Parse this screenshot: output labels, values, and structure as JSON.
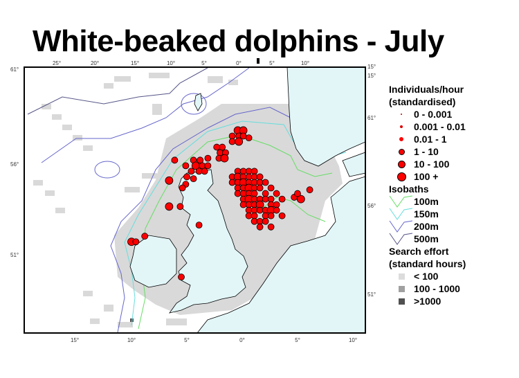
{
  "title": "White-beaked dolphins - July",
  "axes": {
    "top_lon_labels": [
      "25°",
      "20°",
      "15°",
      "10°",
      "5°",
      "0°",
      "5°",
      "10°"
    ],
    "bottom_lon_labels": [
      "15°",
      "10°",
      "5°",
      "0°",
      "5°",
      "10°"
    ],
    "left_lat_labels": [
      "61°",
      "56°",
      "51°"
    ],
    "right_labels": [
      "15°",
      "15°",
      "61°",
      "56°",
      "51°"
    ]
  },
  "legend": {
    "individuals_title": "Individuals/hour",
    "individuals_subtitle": "(standardised)",
    "individual_classes": [
      "0 - 0.001",
      "0.001 - 0.01",
      "0.01 - 1",
      "1 - 10",
      "10 - 100",
      "100 +"
    ],
    "isobaths_title": "Isobaths",
    "isobaths": [
      {
        "label": "100m",
        "color": "#66dd66"
      },
      {
        "label": "150m",
        "color": "#66dddd"
      },
      {
        "label": "200m",
        "color": "#6666cc"
      },
      {
        "label": "500m",
        "color": "#555588"
      }
    ],
    "effort_title": "Search effort",
    "effort_subtitle": "(standard hours)",
    "effort_classes": [
      {
        "label": "< 100",
        "color": "#dcdcdc"
      },
      {
        "label": "100 - 1000",
        "color": "#a0a0a0"
      },
      {
        "label": ">1000",
        "color": "#505050"
      }
    ]
  },
  "colors": {
    "sighting": "#ff0000",
    "land": "#e2f6f8",
    "effort_low": "#d9d9d9"
  },
  "sightings_lon_lat_class": [
    [
      -0.4,
      57.7,
      4
    ],
    [
      0.1,
      57.7,
      4
    ],
    [
      -0.9,
      57.4,
      3
    ],
    [
      -0.3,
      57.4,
      3
    ],
    [
      0.1,
      57.4,
      3
    ],
    [
      0.6,
      57.3,
      3
    ],
    [
      -0.9,
      57.1,
      3
    ],
    [
      -0.3,
      57.1,
      4
    ],
    [
      -1.8,
      56.8,
      3
    ],
    [
      -2.3,
      56.8,
      3
    ],
    [
      -2.0,
      56.5,
      3
    ],
    [
      -1.5,
      56.5,
      3
    ],
    [
      -2.1,
      56.2,
      3
    ],
    [
      -1.6,
      56.2,
      4
    ],
    [
      -3.1,
      56.2,
      3
    ],
    [
      -3.8,
      56.1,
      3
    ],
    [
      -4.4,
      56.1,
      3
    ],
    [
      -5.1,
      55.8,
      3
    ],
    [
      -4.2,
      55.8,
      4
    ],
    [
      -3.6,
      55.8,
      3
    ],
    [
      -3.1,
      55.8,
      3
    ],
    [
      -6.1,
      56.1,
      3
    ],
    [
      -4.6,
      55.5,
      3
    ],
    [
      -3.9,
      55.5,
      3
    ],
    [
      -3.4,
      55.5,
      3
    ],
    [
      -5.0,
      55.2,
      3
    ],
    [
      -4.4,
      55.1,
      3
    ],
    [
      -5.1,
      54.8,
      3
    ],
    [
      -6.6,
      55.0,
      4
    ],
    [
      -5.4,
      54.6,
      3
    ],
    [
      -6.6,
      53.6,
      4
    ],
    [
      -5.6,
      53.6,
      3
    ],
    [
      -10.0,
      51.7,
      4
    ],
    [
      -9.6,
      51.7,
      3
    ],
    [
      -8.8,
      52.0,
      3
    ],
    [
      -3.9,
      52.6,
      3
    ],
    [
      -5.5,
      49.8,
      3
    ],
    [
      -0.4,
      55.5,
      3
    ],
    [
      0.1,
      55.5,
      3
    ],
    [
      0.6,
      55.5,
      3
    ],
    [
      1.1,
      55.5,
      3
    ],
    [
      -0.9,
      55.2,
      3
    ],
    [
      -0.4,
      55.2,
      4
    ],
    [
      0.1,
      55.2,
      3
    ],
    [
      0.6,
      55.2,
      3
    ],
    [
      1.1,
      55.2,
      3
    ],
    [
      1.6,
      55.2,
      3
    ],
    [
      -0.9,
      54.9,
      3
    ],
    [
      -0.4,
      54.9,
      3
    ],
    [
      0.1,
      54.9,
      4
    ],
    [
      0.6,
      54.9,
      3
    ],
    [
      1.1,
      54.9,
      3
    ],
    [
      1.6,
      54.9,
      3
    ],
    [
      2.1,
      54.9,
      3
    ],
    [
      -0.4,
      54.6,
      3
    ],
    [
      0.1,
      54.6,
      3
    ],
    [
      0.6,
      54.6,
      4
    ],
    [
      1.1,
      54.6,
      3
    ],
    [
      1.6,
      54.6,
      3
    ],
    [
      2.6,
      54.6,
      3
    ],
    [
      -0.4,
      54.3,
      3
    ],
    [
      0.1,
      54.3,
      3
    ],
    [
      0.6,
      54.3,
      3
    ],
    [
      1.1,
      54.3,
      3
    ],
    [
      2.1,
      54.3,
      3
    ],
    [
      3.1,
      54.3,
      3
    ],
    [
      0.1,
      54.0,
      3
    ],
    [
      0.6,
      54.0,
      4
    ],
    [
      1.1,
      54.0,
      3
    ],
    [
      1.6,
      54.0,
      3
    ],
    [
      2.1,
      54.0,
      3
    ],
    [
      2.6,
      54.0,
      3
    ],
    [
      3.6,
      54.0,
      3
    ],
    [
      0.1,
      53.7,
      3
    ],
    [
      0.6,
      53.7,
      3
    ],
    [
      1.1,
      53.7,
      3
    ],
    [
      1.6,
      53.7,
      4
    ],
    [
      2.6,
      53.7,
      3
    ],
    [
      3.1,
      53.7,
      3
    ],
    [
      0.6,
      53.4,
      3
    ],
    [
      1.1,
      53.4,
      3
    ],
    [
      1.6,
      53.4,
      3
    ],
    [
      2.1,
      53.4,
      3
    ],
    [
      2.6,
      53.4,
      4
    ],
    [
      3.1,
      53.4,
      3
    ],
    [
      0.6,
      53.1,
      3
    ],
    [
      1.1,
      53.1,
      3
    ],
    [
      2.1,
      53.1,
      3
    ],
    [
      2.6,
      53.1,
      3
    ],
    [
      3.6,
      53.1,
      3
    ],
    [
      1.1,
      52.8,
      3
    ],
    [
      1.6,
      52.8,
      3
    ],
    [
      2.1,
      52.8,
      3
    ],
    [
      1.6,
      52.5,
      3
    ],
    [
      2.6,
      52.5,
      3
    ],
    [
      4.7,
      54.1,
      3
    ],
    [
      5.3,
      54.0,
      4
    ],
    [
      6.1,
      54.5,
      3
    ],
    [
      5.0,
      54.3,
      3
    ]
  ]
}
